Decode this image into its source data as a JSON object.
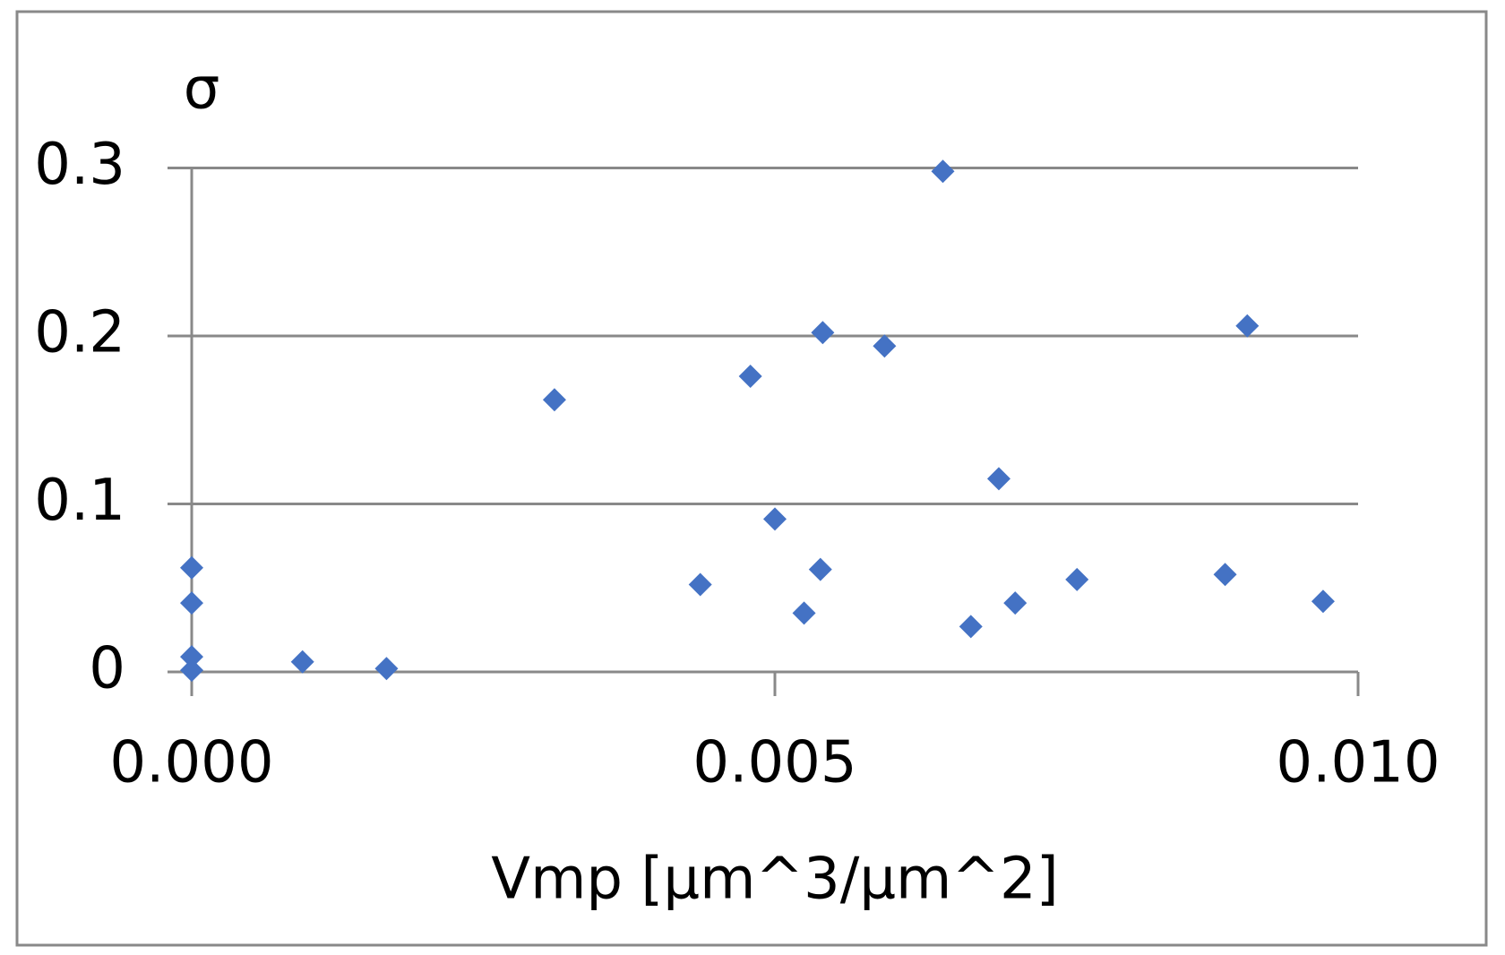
{
  "chart_data": {
    "type": "scatter",
    "x_label": "Vmp [µm^3/µm^2]",
    "y_label": "σ",
    "series": [
      {
        "color": "#4472c4",
        "x": [
          0,
          0,
          0,
          0,
          0.00095,
          0.00167,
          0.00311,
          0.00436,
          0.00479,
          0.005,
          0.00539,
          0.00525,
          0.00541,
          0.00594,
          0.00644,
          0.00668,
          0.00692,
          0.00706,
          0.00759,
          0.00886,
          0.00905,
          0.0097
        ],
        "values": [
          0.062,
          0.041,
          0.009,
          0.001,
          0.006,
          0.002,
          0.162,
          0.052,
          0.176,
          0.091,
          0.061,
          0.035,
          0.202,
          0.194,
          0.298,
          0.027,
          0.115,
          0.041,
          0.055,
          0.058,
          0.206,
          0.042
        ]
      }
    ],
    "xlim": [
      0,
      0.01
    ],
    "xticks": [
      {
        "value": 0,
        "label": "0.000"
      },
      {
        "value": 0.005,
        "label": "0.005"
      },
      {
        "value": 0.01,
        "label": "0.010"
      }
    ],
    "ylim": [
      0,
      0.3
    ],
    "yticks": [
      0,
      0.1,
      0.2,
      0.3
    ],
    "grid": true
  }
}
